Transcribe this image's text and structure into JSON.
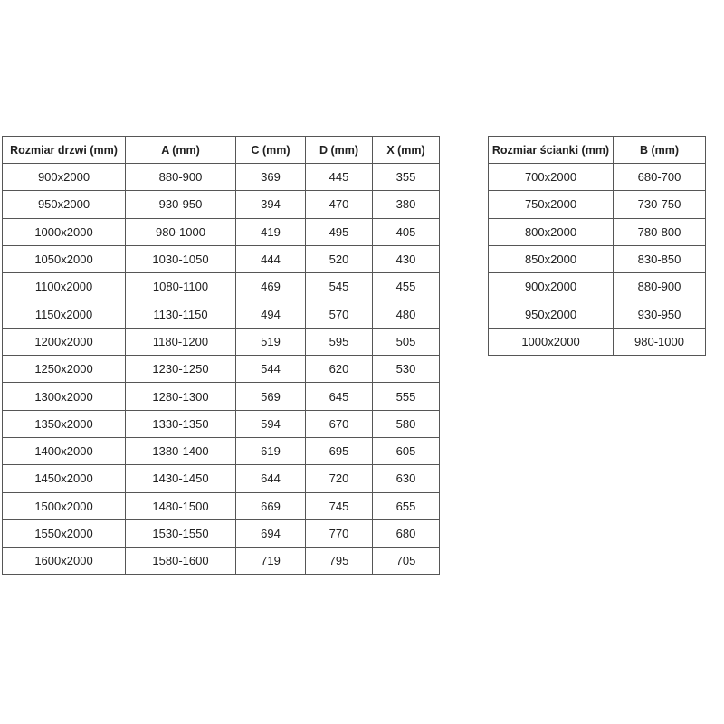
{
  "colors": {
    "background": "#ffffff",
    "border": "#565656",
    "text": "#202020"
  },
  "tables": {
    "doors": {
      "columns": [
        "Rozmiar drzwi (mm)",
        "A (mm)",
        "C (mm)",
        "D (mm)",
        "X (mm)"
      ],
      "rows": [
        [
          "900x2000",
          "880-900",
          "369",
          "445",
          "355"
        ],
        [
          "950x2000",
          "930-950",
          "394",
          "470",
          "380"
        ],
        [
          "1000x2000",
          "980-1000",
          "419",
          "495",
          "405"
        ],
        [
          "1050x2000",
          "1030-1050",
          "444",
          "520",
          "430"
        ],
        [
          "1100x2000",
          "1080-1100",
          "469",
          "545",
          "455"
        ],
        [
          "1150x2000",
          "1130-1150",
          "494",
          "570",
          "480"
        ],
        [
          "1200x2000",
          "1180-1200",
          "519",
          "595",
          "505"
        ],
        [
          "1250x2000",
          "1230-1250",
          "544",
          "620",
          "530"
        ],
        [
          "1300x2000",
          "1280-1300",
          "569",
          "645",
          "555"
        ],
        [
          "1350x2000",
          "1330-1350",
          "594",
          "670",
          "580"
        ],
        [
          "1400x2000",
          "1380-1400",
          "619",
          "695",
          "605"
        ],
        [
          "1450x2000",
          "1430-1450",
          "644",
          "720",
          "630"
        ],
        [
          "1500x2000",
          "1480-1500",
          "669",
          "745",
          "655"
        ],
        [
          "1550x2000",
          "1530-1550",
          "694",
          "770",
          "680"
        ],
        [
          "1600x2000",
          "1580-1600",
          "719",
          "795",
          "705"
        ]
      ]
    },
    "walls": {
      "columns": [
        "Rozmiar ścianki (mm)",
        "B (mm)"
      ],
      "rows": [
        [
          "700x2000",
          "680-700"
        ],
        [
          "750x2000",
          "730-750"
        ],
        [
          "800x2000",
          "780-800"
        ],
        [
          "850x2000",
          "830-850"
        ],
        [
          "900x2000",
          "880-900"
        ],
        [
          "950x2000",
          "930-950"
        ],
        [
          "1000x2000",
          "980-1000"
        ]
      ]
    }
  }
}
